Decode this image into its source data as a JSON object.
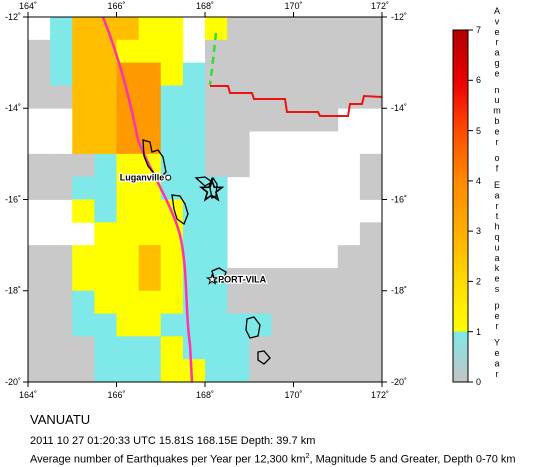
{
  "map": {
    "lon_ticks": [
      "164˚",
      "166˚",
      "168˚",
      "170˚",
      "172˚"
    ],
    "lat_ticks": [
      "-12˚",
      "-14˚",
      "-16˚",
      "-18˚",
      "-20˚"
    ],
    "grid_cells": [
      [
        0,
        0,
        1,
        2,
        2,
        4,
        0,
        0,
        0,
        0,
        0,
        0,
        0,
        0,
        0,
        0
      ],
      [
        1,
        1,
        2,
        2,
        2,
        2,
        1,
        1,
        0,
        0,
        0,
        0,
        0,
        0,
        0,
        0
      ],
      [
        0,
        0,
        2,
        2,
        3,
        3,
        2,
        1,
        1,
        0,
        0,
        0,
        0,
        0,
        0,
        0
      ],
      [
        0,
        0,
        0,
        2,
        3,
        3,
        2,
        1,
        1,
        0,
        0,
        0,
        0,
        0,
        0,
        0
      ],
      [
        0,
        0,
        0,
        2,
        3,
        3,
        2,
        1,
        1,
        0,
        0,
        0,
        0,
        0,
        0,
        0
      ],
      [
        0,
        0,
        1,
        1,
        2,
        2,
        2,
        1,
        1,
        0,
        0,
        0,
        0,
        0,
        0,
        0
      ],
      [
        0,
        0,
        1,
        1,
        2,
        2,
        1,
        1,
        0,
        0,
        0,
        0,
        0,
        0,
        0,
        0
      ],
      [
        0,
        0,
        0,
        1,
        1,
        1,
        1,
        1,
        0,
        0,
        0,
        0,
        0,
        0,
        0,
        0
      ]
    ],
    "places": [
      {
        "name": "Luganville",
        "lon": 167.17,
        "lat": -15.52
      },
      {
        "name": "PORT-VILA",
        "lon": 168.32,
        "lat": -17.73
      }
    ],
    "epicenter": {
      "lon": 168.15,
      "lat": -15.81
    }
  },
  "legend": {
    "title": "Average number of Earthquakes per Year",
    "ticks": [
      "0",
      "1",
      "2",
      "3",
      "4",
      "5",
      "6",
      "7"
    ],
    "colors": [
      "#bfbfbf",
      "#7fe8e8",
      "#ffff00",
      "#ffc000",
      "#ff9900",
      "#ff6600",
      "#ff2200",
      "#e00000",
      "#b00000"
    ]
  },
  "caption": {
    "region": "VANUATU",
    "event": "2011 10 27 01:20:33 UTC 15.81S 168.15E Depth: 39.7 km",
    "rate_prefix": "Average number of Earthquakes per Year per 12,300 km",
    "rate_superscript": "2",
    "rate_suffix": ", Magnitude 5 and Greater, Depth 0-70 km"
  }
}
